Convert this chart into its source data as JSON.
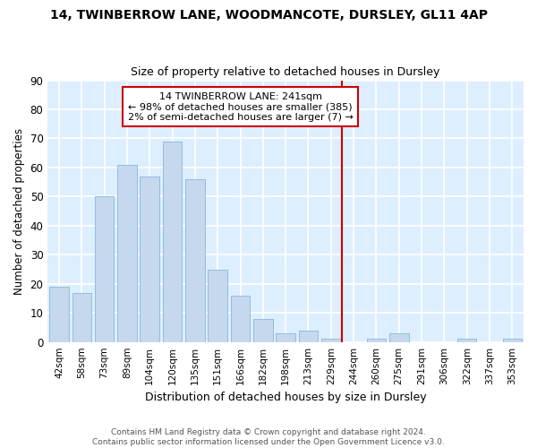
{
  "title1": "14, TWINBERROW LANE, WOODMANCOTE, DURSLEY, GL11 4AP",
  "title2": "Size of property relative to detached houses in Dursley",
  "xlabel": "Distribution of detached houses by size in Dursley",
  "ylabel": "Number of detached properties",
  "categories": [
    "42sqm",
    "58sqm",
    "73sqm",
    "89sqm",
    "104sqm",
    "120sqm",
    "135sqm",
    "151sqm",
    "166sqm",
    "182sqm",
    "198sqm",
    "213sqm",
    "229sqm",
    "244sqm",
    "260sqm",
    "275sqm",
    "291sqm",
    "306sqm",
    "322sqm",
    "337sqm",
    "353sqm"
  ],
  "bar_heights": [
    19,
    17,
    50,
    61,
    57,
    69,
    56,
    25,
    16,
    8,
    3,
    4,
    1,
    0,
    1,
    3,
    0,
    0,
    1,
    0,
    1
  ],
  "bar_color": "#c5d8ed",
  "bar_edge_color": "#88b8d8",
  "figure_bg": "#ffffff",
  "axes_bg": "#ddeeff",
  "grid_color": "#ffffff",
  "vline_x": 12.5,
  "vline_color": "#cc0000",
  "annotation_text": "14 TWINBERROW LANE: 241sqm\n← 98% of detached houses are smaller (385)\n2% of semi-detached houses are larger (7) →",
  "annotation_box_color": "#cc0000",
  "footnote": "Contains HM Land Registry data © Crown copyright and database right 2024.\nContains public sector information licensed under the Open Government Licence v3.0.",
  "ylim": [
    0,
    90
  ],
  "yticks": [
    0,
    10,
    20,
    30,
    40,
    50,
    60,
    70,
    80,
    90
  ]
}
